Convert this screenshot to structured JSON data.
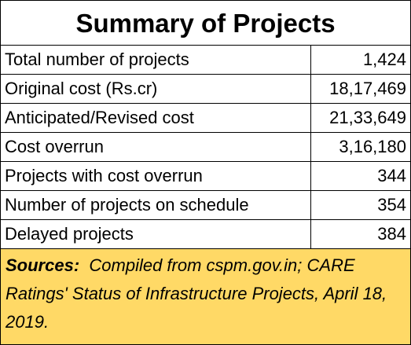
{
  "title": "Summary of Projects",
  "table": {
    "rows": [
      [
        "Total number of projects",
        "1,424"
      ],
      [
        "Original cost (Rs.cr)",
        "18,17,469"
      ],
      [
        "Anticipated/Revised cost",
        "21,33,649"
      ],
      [
        "Cost overrun",
        "3,16,180"
      ],
      [
        "Projects with cost overrun",
        "344"
      ],
      [
        "Number of projects on schedule",
        "354"
      ],
      [
        "Delayed projects",
        "384"
      ]
    ]
  },
  "sources": {
    "label": "Sources:",
    "text": "Compiled from cspm.gov.in; CARE Ratings' Status of Infrastructure Projects, April 18, 2019."
  }
}
